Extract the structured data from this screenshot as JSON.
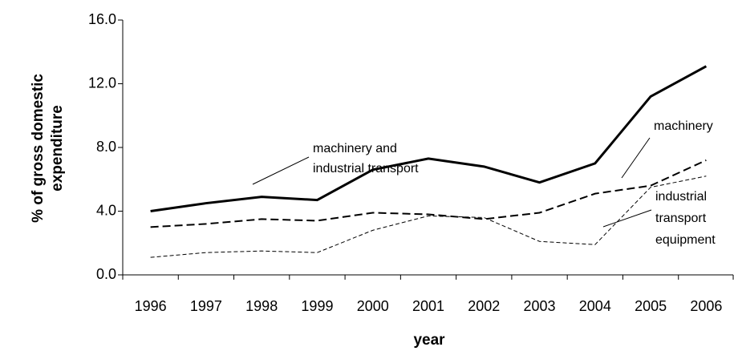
{
  "chart_data": {
    "type": "line",
    "x_label": "year",
    "y_label": "% of gross domestic\nexpenditure",
    "categories": [
      "1996",
      "1997",
      "1998",
      "1999",
      "2000",
      "2001",
      "2002",
      "2003",
      "2004",
      "2005",
      "2006"
    ],
    "series": [
      {
        "name": "machinery and\nindustrial transport",
        "color": "#000000",
        "width": 3,
        "dash": "none",
        "values": [
          4.0,
          4.5,
          4.9,
          4.7,
          6.6,
          7.3,
          6.8,
          5.8,
          7.0,
          11.2,
          13.1
        ]
      },
      {
        "name": "machinery",
        "color": "#000000",
        "width": 2,
        "dash": "10 5",
        "values": [
          3.0,
          3.2,
          3.5,
          3.4,
          3.9,
          3.8,
          3.5,
          3.9,
          5.1,
          5.6,
          7.2
        ]
      },
      {
        "name": "industrial\ntransport\nequipment",
        "color": "#000000",
        "width": 1,
        "dash": "5 3",
        "values": [
          1.1,
          1.4,
          1.5,
          1.4,
          2.8,
          3.7,
          3.6,
          2.1,
          1.9,
          5.5,
          6.2
        ]
      }
    ],
    "ylim": [
      0,
      16
    ],
    "yticks": [
      {
        "value": 0,
        "label": "0.0"
      },
      {
        "value": 4,
        "label": "4.0"
      },
      {
        "value": 8,
        "label": "8.0"
      },
      {
        "value": 12,
        "label": "12.0"
      },
      {
        "value": 16,
        "label": "16.0"
      }
    ],
    "grid": false
  }
}
